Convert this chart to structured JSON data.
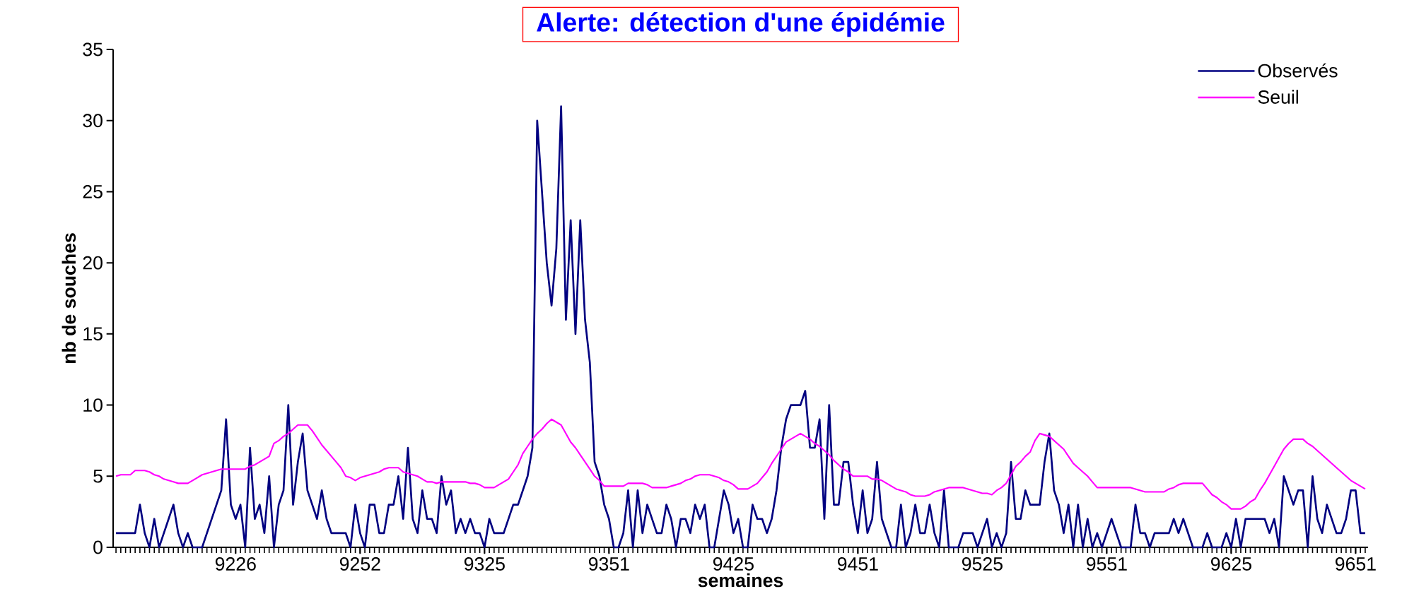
{
  "chart_data": {
    "type": "line",
    "title": "Alerte: détection d'une épidémie",
    "xlabel": "semaines",
    "ylabel": "nb de souches",
    "categories": [
      null,
      null,
      null,
      null,
      null,
      null,
      null,
      null,
      null,
      null,
      null,
      null,
      null,
      null,
      null,
      null,
      null,
      null,
      null,
      null,
      null,
      null,
      null,
      null,
      null,
      "9226",
      null,
      null,
      null,
      null,
      null,
      null,
      null,
      null,
      null,
      null,
      null,
      null,
      null,
      null,
      null,
      null,
      null,
      null,
      null,
      null,
      null,
      null,
      null,
      null,
      null,
      "9252",
      null,
      null,
      null,
      null,
      null,
      null,
      null,
      null,
      null,
      null,
      null,
      null,
      null,
      null,
      null,
      null,
      null,
      null,
      null,
      null,
      null,
      null,
      null,
      null,
      null,
      "9325",
      null,
      null,
      null,
      null,
      null,
      null,
      null,
      null,
      null,
      null,
      null,
      null,
      null,
      null,
      null,
      null,
      null,
      null,
      null,
      null,
      null,
      null,
      null,
      null,
      null,
      "9351",
      null,
      null,
      null,
      null,
      null,
      null,
      null,
      null,
      null,
      null,
      null,
      null,
      null,
      null,
      null,
      null,
      null,
      null,
      null,
      null,
      null,
      null,
      null,
      null,
      null,
      "9425",
      null,
      null,
      null,
      null,
      null,
      null,
      null,
      null,
      null,
      null,
      null,
      null,
      null,
      null,
      null,
      null,
      null,
      null,
      null,
      null,
      null,
      null,
      null,
      null,
      null,
      "9451",
      null,
      null,
      null,
      null,
      null,
      null,
      null,
      null,
      null,
      null,
      null,
      null,
      null,
      null,
      null,
      null,
      null,
      null,
      null,
      null,
      null,
      null,
      null,
      null,
      null,
      "9525",
      null,
      null,
      null,
      null,
      null,
      null,
      null,
      null,
      null,
      null,
      null,
      null,
      null,
      null,
      null,
      null,
      null,
      null,
      null,
      null,
      null,
      null,
      null,
      null,
      null,
      "9551",
      null,
      null,
      null,
      null,
      null,
      null,
      null,
      null,
      null,
      null,
      null,
      null,
      null,
      null,
      null,
      null,
      null,
      null,
      null,
      null,
      null,
      null,
      null,
      null,
      null,
      "9625",
      null,
      null,
      null,
      null,
      null,
      null,
      null,
      null,
      null,
      null,
      null,
      null,
      null,
      null,
      null,
      null,
      null,
      null,
      null,
      null,
      null,
      null,
      null,
      null,
      null,
      "9651",
      null,
      null
    ],
    "series": [
      {
        "name": "Observés",
        "color": "#000080",
        "values": [
          1,
          1,
          1,
          1,
          1,
          3,
          1,
          0,
          2,
          0,
          1,
          2,
          3,
          1,
          0,
          1,
          0,
          0,
          0,
          1,
          2,
          3,
          4,
          9,
          3,
          2,
          3,
          0,
          7,
          2,
          3,
          1,
          5,
          0,
          3,
          4,
          10,
          3,
          6,
          8,
          4,
          3,
          2,
          4,
          2,
          1,
          1,
          1,
          1,
          0,
          3,
          1,
          0,
          3,
          3,
          1,
          1,
          3,
          3,
          5,
          2,
          7,
          2,
          1,
          4,
          2,
          2,
          1,
          5,
          3,
          4,
          1,
          2,
          1,
          2,
          1,
          1,
          0,
          2,
          1,
          1,
          1,
          2,
          3,
          3,
          4,
          5,
          7,
          30,
          25,
          20,
          17,
          21,
          31,
          16,
          23,
          15,
          23,
          16,
          13,
          6,
          5,
          3,
          2,
          0,
          0,
          1,
          4,
          0,
          4,
          1,
          3,
          2,
          1,
          1,
          3,
          2,
          0,
          2,
          2,
          1,
          3,
          2,
          3,
          0,
          0,
          2,
          4,
          3,
          1,
          2,
          0,
          0,
          3,
          2,
          2,
          1,
          2,
          4,
          7,
          9,
          10,
          10,
          10,
          11,
          7,
          7,
          9,
          2,
          10,
          3,
          3,
          6,
          6,
          3,
          1,
          4,
          1,
          2,
          6,
          2,
          1,
          0,
          0,
          3,
          0,
          1,
          3,
          1,
          1,
          3,
          1,
          0,
          4,
          0,
          0,
          0,
          1,
          1,
          1,
          0,
          1,
          2,
          0,
          1,
          0,
          1,
          6,
          2,
          2,
          4,
          3,
          3,
          3,
          6,
          8,
          4,
          3,
          1,
          3,
          0,
          3,
          0,
          2,
          0,
          1,
          0,
          1,
          2,
          1,
          0,
          0,
          0,
          3,
          1,
          1,
          0,
          1,
          1,
          1,
          1,
          2,
          1,
          2,
          1,
          0,
          0,
          0,
          1,
          0,
          0,
          0,
          1,
          0,
          2,
          0,
          2,
          2,
          2,
          2,
          2,
          1,
          2,
          0,
          5,
          4,
          3,
          4,
          4,
          0,
          5,
          2,
          1,
          3,
          2,
          1,
          1,
          2,
          4,
          4,
          1,
          1
        ]
      },
      {
        "name": "Seuil",
        "color": "#ff00ff",
        "values": [
          5.0,
          5.1,
          5.1,
          5.1,
          5.4,
          5.4,
          5.4,
          5.3,
          5.1,
          5.0,
          4.8,
          4.7,
          4.6,
          4.5,
          4.5,
          4.5,
          4.7,
          4.9,
          5.1,
          5.2,
          5.3,
          5.4,
          5.5,
          5.5,
          5.5,
          5.5,
          5.5,
          5.5,
          5.7,
          5.8,
          6.0,
          6.2,
          6.4,
          7.3,
          7.5,
          7.8,
          8.0,
          8.3,
          8.6,
          8.6,
          8.6,
          8.2,
          7.7,
          7.2,
          6.8,
          6.4,
          6.0,
          5.6,
          5.0,
          4.9,
          4.7,
          4.9,
          5.0,
          5.1,
          5.2,
          5.3,
          5.5,
          5.6,
          5.6,
          5.6,
          5.3,
          5.2,
          5.1,
          5.0,
          4.8,
          4.6,
          4.6,
          4.5,
          4.6,
          4.6,
          4.6,
          4.6,
          4.6,
          4.6,
          4.5,
          4.5,
          4.4,
          4.2,
          4.2,
          4.2,
          4.4,
          4.6,
          4.8,
          5.3,
          5.8,
          6.6,
          7.1,
          7.6,
          8.0,
          8.3,
          8.7,
          9.0,
          8.8,
          8.6,
          8.0,
          7.4,
          7.0,
          6.5,
          6.0,
          5.5,
          5.0,
          4.7,
          4.3,
          4.3,
          4.3,
          4.3,
          4.3,
          4.5,
          4.5,
          4.5,
          4.5,
          4.4,
          4.2,
          4.2,
          4.2,
          4.2,
          4.3,
          4.4,
          4.5,
          4.7,
          4.8,
          5.0,
          5.1,
          5.1,
          5.1,
          5.0,
          4.9,
          4.7,
          4.6,
          4.4,
          4.1,
          4.1,
          4.1,
          4.3,
          4.5,
          4.9,
          5.3,
          5.9,
          6.4,
          6.9,
          7.4,
          7.6,
          7.8,
          8.0,
          7.8,
          7.6,
          7.3,
          7.1,
          6.8,
          6.5,
          6.1,
          5.8,
          5.5,
          5.3,
          5.0,
          5.0,
          5.0,
          5.0,
          4.8,
          4.8,
          4.7,
          4.5,
          4.3,
          4.1,
          4.0,
          3.9,
          3.7,
          3.6,
          3.6,
          3.6,
          3.7,
          3.9,
          4.0,
          4.1,
          4.2,
          4.2,
          4.2,
          4.2,
          4.1,
          4.0,
          3.9,
          3.8,
          3.8,
          3.7,
          4.0,
          4.2,
          4.5,
          5.1,
          5.7,
          6.0,
          6.4,
          6.7,
          7.5,
          8.0,
          7.9,
          7.8,
          7.5,
          7.2,
          6.9,
          6.4,
          5.9,
          5.6,
          5.3,
          5.0,
          4.6,
          4.2,
          4.2,
          4.2,
          4.2,
          4.2,
          4.2,
          4.2,
          4.2,
          4.1,
          4.0,
          3.9,
          3.9,
          3.9,
          3.9,
          3.9,
          4.1,
          4.2,
          4.4,
          4.5,
          4.5,
          4.5,
          4.5,
          4.5,
          4.1,
          3.7,
          3.5,
          3.2,
          3.0,
          2.7,
          2.7,
          2.7,
          2.9,
          3.2,
          3.4,
          4.0,
          4.5,
          5.1,
          5.7,
          6.3,
          6.9,
          7.3,
          7.6,
          7.6,
          7.6,
          7.3,
          7.1,
          6.8,
          6.5,
          6.2,
          5.9,
          5.6,
          5.3,
          5.0,
          4.7,
          4.5,
          4.3,
          4.1
        ]
      }
    ],
    "ylim": [
      0,
      35
    ],
    "yticks": [
      0,
      5,
      10,
      15,
      20,
      25,
      30,
      35
    ],
    "legend": "top right",
    "marker": "none",
    "line_style": "solid"
  }
}
